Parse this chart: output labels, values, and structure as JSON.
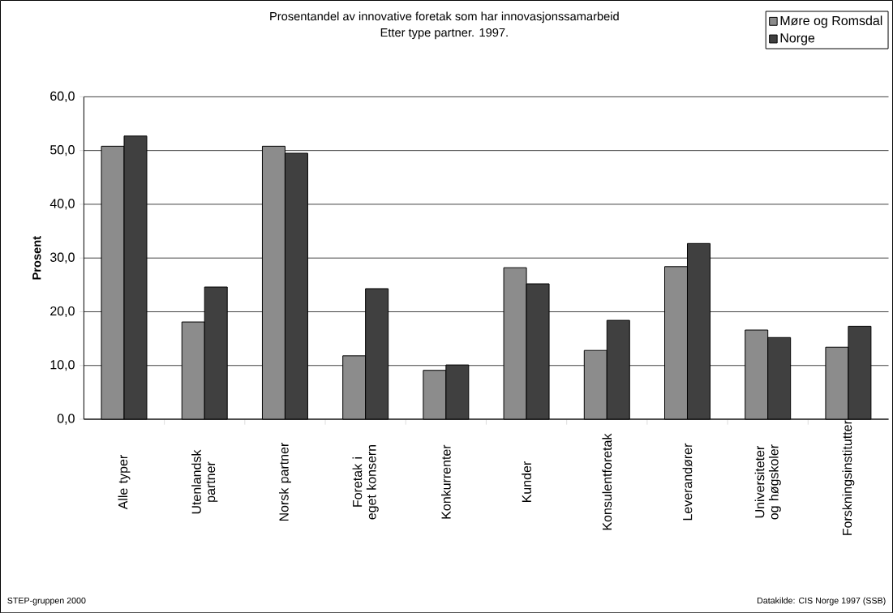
{
  "chart_data": {
    "type": "bar",
    "title": "Prosentandel av innovative foretak som har innovasjonssamarbeid",
    "subtitle": "Etter type partner. 1997.",
    "ylabel": "Prosent",
    "categories": [
      "Alle typer",
      "Utenlandsk partner",
      "Norsk partner",
      "Foretak i eget konsern",
      "Konkurrenter",
      "Kunder",
      "Konsulentforetak",
      "Leverandører",
      "Universiteter og høgskoler",
      "Forskningsinstitutter"
    ],
    "series": [
      {
        "name": "Møre og Romsdal",
        "color": "#8c8c8c",
        "values": [
          50.8,
          18.1,
          50.8,
          11.8,
          9.1,
          28.2,
          12.8,
          28.4,
          16.6,
          13.4
        ]
      },
      {
        "name": "Norge",
        "color": "#404040",
        "values": [
          52.7,
          24.6,
          49.5,
          24.3,
          10.1,
          25.2,
          18.4,
          32.7,
          15.2,
          17.3
        ]
      }
    ],
    "ylim": [
      0,
      60
    ],
    "yticks": [
      {
        "value": 0,
        "label": "0,0"
      },
      {
        "value": 10,
        "label": "10,0"
      },
      {
        "value": 20,
        "label": "20,0"
      },
      {
        "value": 30,
        "label": "30,0"
      },
      {
        "value": 40,
        "label": "40,0"
      },
      {
        "value": 50,
        "label": "50,0"
      },
      {
        "value": 60,
        "label": "60,0"
      }
    ],
    "grid": "y",
    "legend": "top right",
    "annotations": [
      "STEP-gruppen 2000",
      "Datakilde: CIS Norge 1997 (SSB)"
    ]
  }
}
